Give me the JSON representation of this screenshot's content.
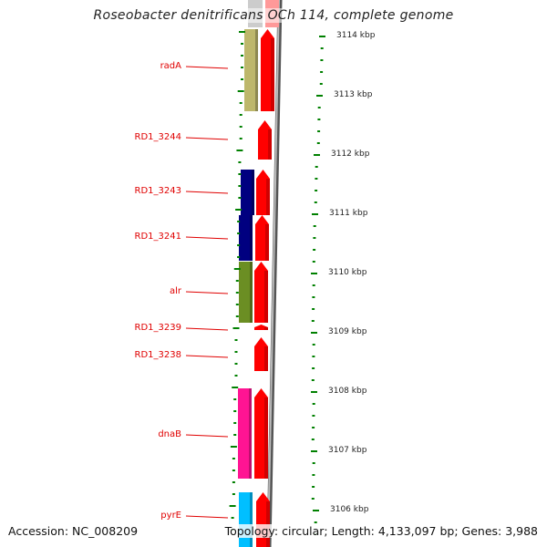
{
  "title": "Roseobacter denitrificans OCh 114, complete genome",
  "accession": "Accession: NC_008209",
  "summary": "Topology: circular; Length: 4,133,097 bp; Genes: 3,988",
  "genes": [
    {
      "name": "radA",
      "color": "#bdb76b"
    },
    {
      "name": "RD1_3244",
      "color": null
    },
    {
      "name": "RD1_3243",
      "color": "#000080"
    },
    {
      "name": "RD1_3241",
      "color": "#000080"
    },
    {
      "name": "alr",
      "color": "#6b8e23"
    },
    {
      "name": "RD1_3239",
      "color": null
    },
    {
      "name": "RD1_3238",
      "color": null
    },
    {
      "name": "dnaB",
      "color": "#ff1493"
    },
    {
      "name": "pyrE",
      "color": "#00bfff"
    }
  ],
  "scale": [
    "3114 kbp",
    "3113 kbp",
    "3112 kbp",
    "3111 kbp",
    "3110 kbp",
    "3109 kbp",
    "3108 kbp",
    "3107 kbp",
    "3106 kbp"
  ],
  "colors": {
    "cds": "#ff0000",
    "label": "#e00000",
    "tick": "#008000",
    "backbone": "#8a8a8a"
  }
}
